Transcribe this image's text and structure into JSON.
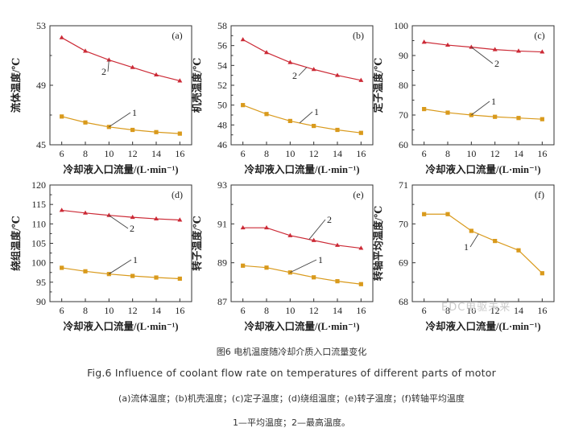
{
  "colors": {
    "curve_max": "#cc2a36",
    "curve_avg": "#d99a1c",
    "axis": "#333333"
  },
  "watermark": "EDC电驱未来",
  "caption": {
    "cn": "图6 电机温度随冷却介质入口流量变化",
    "en": "Fig.6 Influence of coolant flow rate on temperatures of different parts of motor",
    "sub": "(a)流体温度；(b)机壳温度；(c)定子温度；(d)绕组温度；(e)转子温度；(f)转轴平均温度",
    "legend": "1—平均温度；2—最高温度。"
  },
  "chart_data": [
    {
      "type": "line",
      "panel": "(a)",
      "xlabel": "冷却液入口流量/(L·min⁻¹)",
      "ylabel": "流体温度/℃",
      "x": [
        6,
        8,
        10,
        12,
        14,
        16
      ],
      "xlim": [
        5,
        17
      ],
      "ylim": [
        45,
        53
      ],
      "xticks": [
        6,
        8,
        10,
        12,
        14,
        16
      ],
      "yticks": [
        45,
        49,
        53
      ],
      "series": [
        {
          "name": "2",
          "color_key": "curve_max",
          "marker": "triangle",
          "values": [
            52.2,
            51.3,
            50.7,
            50.2,
            49.7,
            49.3
          ]
        },
        {
          "name": "1",
          "color_key": "curve_avg",
          "marker": "square",
          "values": [
            46.9,
            46.5,
            46.2,
            46.0,
            45.85,
            45.75
          ]
        }
      ]
    },
    {
      "type": "line",
      "panel": "(b)",
      "xlabel": "冷却液入口流量/(L·min⁻¹)",
      "ylabel": "机壳温度/℃",
      "x": [
        6,
        8,
        10,
        12,
        14,
        16
      ],
      "xlim": [
        5,
        17
      ],
      "ylim": [
        46,
        58
      ],
      "xticks": [
        6,
        8,
        10,
        12,
        14,
        16
      ],
      "yticks": [
        46,
        48,
        50,
        52,
        54,
        56,
        58
      ],
      "series": [
        {
          "name": "2",
          "color_key": "curve_max",
          "marker": "triangle",
          "values": [
            56.6,
            55.3,
            54.3,
            53.6,
            53.0,
            52.5
          ]
        },
        {
          "name": "1",
          "color_key": "curve_avg",
          "marker": "square",
          "values": [
            50.0,
            49.1,
            48.4,
            47.9,
            47.5,
            47.2
          ]
        }
      ]
    },
    {
      "type": "line",
      "panel": "(c)",
      "xlabel": "冷却液入口流量/(L·min⁻¹)",
      "ylabel": "定子温度/℃",
      "x": [
        6,
        8,
        10,
        12,
        14,
        16
      ],
      "xlim": [
        5,
        17
      ],
      "ylim": [
        60,
        100
      ],
      "xticks": [
        6,
        8,
        10,
        12,
        14,
        16
      ],
      "yticks": [
        60,
        70,
        80,
        90,
        100
      ],
      "series": [
        {
          "name": "2",
          "color_key": "curve_max",
          "marker": "triangle",
          "values": [
            94.5,
            93.5,
            92.8,
            92.0,
            91.5,
            91.2
          ]
        },
        {
          "name": "1",
          "color_key": "curve_avg",
          "marker": "square",
          "values": [
            72.0,
            70.8,
            70.0,
            69.4,
            69.0,
            68.6
          ]
        }
      ]
    },
    {
      "type": "line",
      "panel": "(d)",
      "xlabel": "冷却液入口流量/(L·min⁻¹)",
      "ylabel": "绕组温度/℃",
      "x": [
        6,
        8,
        10,
        12,
        14,
        16
      ],
      "xlim": [
        5,
        17
      ],
      "ylim": [
        90,
        120
      ],
      "xticks": [
        6,
        8,
        10,
        12,
        14,
        16
      ],
      "yticks": [
        90,
        95,
        100,
        105,
        110,
        115,
        120
      ],
      "series": [
        {
          "name": "2",
          "color_key": "curve_max",
          "marker": "triangle",
          "values": [
            113.5,
            112.8,
            112.2,
            111.7,
            111.3,
            111.0
          ]
        },
        {
          "name": "1",
          "color_key": "curve_avg",
          "marker": "square",
          "values": [
            98.7,
            97.8,
            97.1,
            96.6,
            96.2,
            95.9
          ]
        }
      ]
    },
    {
      "type": "line",
      "panel": "(e)",
      "xlabel": "冷却液入口流量/(L·min⁻¹)",
      "ylabel": "转子温度/℃",
      "x": [
        6,
        8,
        10,
        12,
        14,
        16
      ],
      "xlim": [
        5,
        17
      ],
      "ylim": [
        87,
        93
      ],
      "xticks": [
        6,
        8,
        10,
        12,
        14,
        16
      ],
      "yticks": [
        87,
        89,
        91,
        93
      ],
      "series": [
        {
          "name": "2",
          "color_key": "curve_max",
          "marker": "triangle",
          "values": [
            90.8,
            90.8,
            90.4,
            90.15,
            89.9,
            89.75
          ]
        },
        {
          "name": "1",
          "color_key": "curve_avg",
          "marker": "square",
          "values": [
            88.85,
            88.75,
            88.5,
            88.25,
            88.05,
            87.9
          ]
        }
      ]
    },
    {
      "type": "line",
      "panel": "(f)",
      "xlabel": "冷却液入口流量/(L·min⁻¹)",
      "ylabel": "转轴平均温度/℃",
      "x": [
        6,
        8,
        10,
        12,
        14,
        16
      ],
      "xlim": [
        5,
        17
      ],
      "ylim": [
        68,
        71
      ],
      "xticks": [
        6,
        8,
        10,
        12,
        14,
        16
      ],
      "yticks": [
        68,
        69,
        70,
        71
      ],
      "series": [
        {
          "name": "1",
          "color_key": "curve_avg",
          "marker": "square",
          "values": [
            70.25,
            70.25,
            69.82,
            69.56,
            69.32,
            68.73
          ]
        }
      ]
    }
  ]
}
